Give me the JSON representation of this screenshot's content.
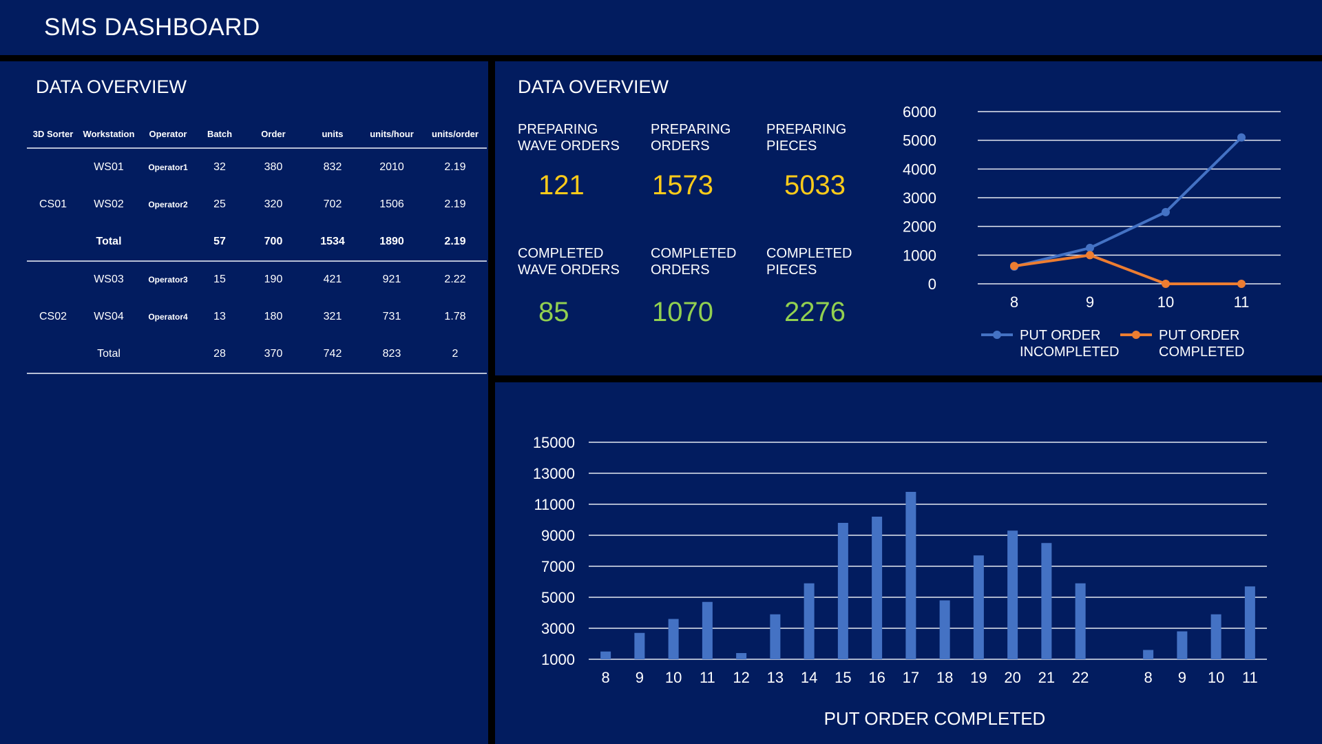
{
  "header": {
    "title": "SMS DASHBOARD"
  },
  "left_panel": {
    "title": "DATA OVERVIEW",
    "columns": [
      "3D Sorter",
      "Workstation",
      "Operator",
      "Batch",
      "Order",
      "units",
      "units/hour",
      "units/order"
    ],
    "rows": [
      [
        "",
        "WS01",
        "Operator1",
        "32",
        "380",
        "832",
        "2010",
        "2.19"
      ],
      [
        "CS01",
        "WS02",
        "Operator2",
        "25",
        "320",
        "702",
        "1506",
        "2.19"
      ],
      [
        "",
        "Total",
        "",
        "57",
        "700",
        "1534",
        "1890",
        "2.19"
      ],
      [
        "",
        "WS03",
        "Operator3",
        "15",
        "190",
        "421",
        "921",
        "2.22"
      ],
      [
        "CS02",
        "WS04",
        "Operator4",
        "13",
        "180",
        "321",
        "731",
        "1.78"
      ],
      [
        "",
        "Total",
        "",
        "28",
        "370",
        "742",
        "823",
        "2"
      ]
    ]
  },
  "kpi_panel": {
    "title": "DATA OVERVIEW",
    "preparing": [
      {
        "label": "PREPARING\nWAVE ORDERS",
        "value": "121"
      },
      {
        "label": "PREPARING\nORDERS",
        "value": "1573"
      },
      {
        "label": "PREPARING\nPIECES",
        "value": "5033"
      }
    ],
    "completed": [
      {
        "label": "COMPLETED\nWAVE ORDERS",
        "value": "85"
      },
      {
        "label": "COMPLETED\nORDERS",
        "value": "1070"
      },
      {
        "label": "COMPLETED\nPIECES",
        "value": "2276"
      }
    ],
    "colors": {
      "preparing": "#fdcb1a",
      "completed": "#92d050"
    }
  },
  "chart_data": [
    {
      "type": "line",
      "x": [
        "8",
        "9",
        "10",
        "11"
      ],
      "ylim": [
        0,
        6000
      ],
      "yticks": [
        0,
        1000,
        2000,
        3000,
        4000,
        5000,
        6000
      ],
      "grid": true,
      "legend": "bottom",
      "series": [
        {
          "name": "PUT ORDER INCOMPLETED",
          "color": "#4472c4",
          "values": [
            600,
            1250,
            2500,
            5100
          ]
        },
        {
          "name": "PUT ORDER COMPLETED",
          "color": "#ed7d31",
          "values": [
            620,
            1000,
            0,
            0
          ]
        }
      ]
    },
    {
      "type": "bar",
      "title": "PUT ORDER COMPLETED",
      "categories": [
        "8",
        "9",
        "10",
        "11",
        "12",
        "13",
        "14",
        "15",
        "16",
        "17",
        "18",
        "19",
        "20",
        "21",
        "22",
        "",
        "8",
        "9",
        "10",
        "11"
      ],
      "values": [
        1500,
        2700,
        3600,
        4700,
        1400,
        3900,
        5900,
        9800,
        10200,
        11800,
        4800,
        7700,
        9300,
        8500,
        5900,
        null,
        1600,
        2800,
        3900,
        5700
      ],
      "ylim": [
        1000,
        15000
      ],
      "yticks": [
        1000,
        3000,
        5000,
        7000,
        9000,
        11000,
        13000,
        15000
      ],
      "grid": true,
      "color": "#4472c4"
    }
  ]
}
